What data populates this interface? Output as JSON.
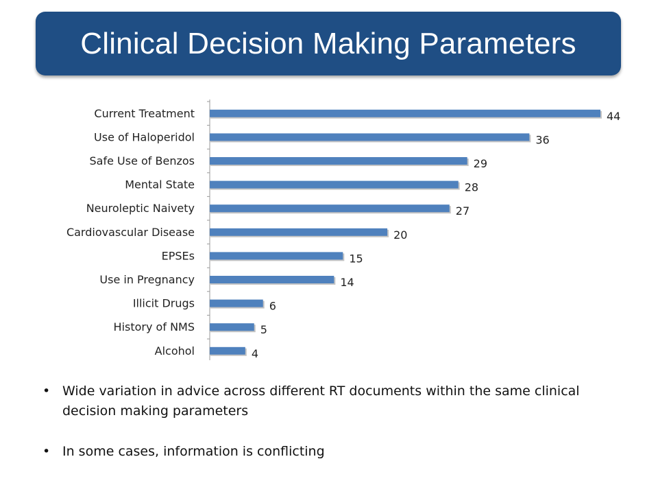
{
  "header": {
    "title": "Clinical Decision Making Parameters"
  },
  "chart_data": {
    "type": "bar",
    "orientation": "horizontal",
    "categories": [
      "Current Treatment",
      "Use of Haloperidol",
      "Safe Use of Benzos",
      "Mental State",
      "Neuroleptic Naivety",
      "Cardiovascular Disease",
      "EPSEs",
      "Use in Pregnancy",
      "Illicit Drugs",
      "History of NMS",
      "Alcohol"
    ],
    "values": [
      44,
      36,
      29,
      28,
      27,
      20,
      15,
      14,
      6,
      5,
      4
    ],
    "xlim": [
      0,
      44
    ],
    "grid": false,
    "legend": "none",
    "bar_color": "#4f81bd"
  },
  "bullets": [
    {
      "marker": "•",
      "text": "Wide variation in advice across different RT documents within the same clinical decision making parameters"
    },
    {
      "marker": "•",
      "text": "In some cases, information is conflicting"
    }
  ]
}
